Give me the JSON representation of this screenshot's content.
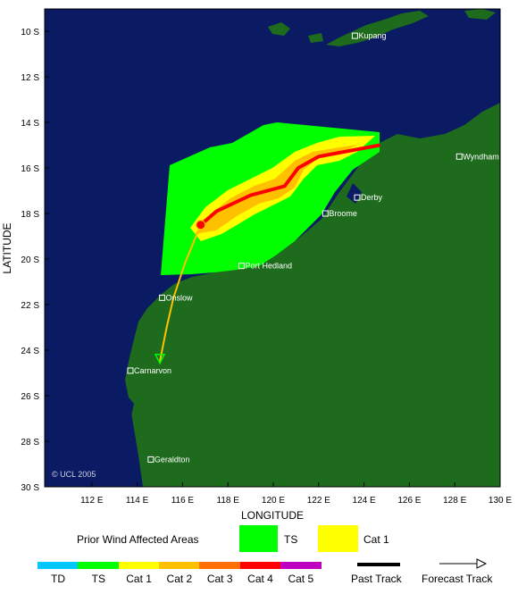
{
  "map": {
    "xlabel": "LONGITUDE",
    "ylabel": "LATITUDE",
    "copyright": "© UCL 2005",
    "lat_ticks": [
      "10 S",
      "12 S",
      "14 S",
      "16 S",
      "18 S",
      "20 S",
      "22 S",
      "24 S",
      "26 S",
      "28 S",
      "30 S"
    ],
    "lon_ticks": [
      "112 E",
      "114 E",
      "116 E",
      "118 E",
      "120 E",
      "122 E",
      "124 E",
      "126 E",
      "128 E",
      "130 E"
    ],
    "colors": {
      "ocean": "#0a1a63",
      "land": "#1e6b1e",
      "ts": "#00ff00",
      "cat1": "#ffff00",
      "cat2": "#ffc000",
      "cat4": "#ff0000"
    },
    "places": [
      {
        "name": "Kupang",
        "lon": 123.6,
        "lat": 10.2
      },
      {
        "name": "Wyndham",
        "lon": 128.2,
        "lat": 15.5
      },
      {
        "name": "Derby",
        "lon": 123.7,
        "lat": 17.3
      },
      {
        "name": "Broome",
        "lon": 122.3,
        "lat": 18.0
      },
      {
        "name": "Port Hedland",
        "lon": 118.6,
        "lat": 20.3
      },
      {
        "name": "Onslow",
        "lon": 115.1,
        "lat": 21.7
      },
      {
        "name": "Carnarvon",
        "lon": 113.7,
        "lat": 24.9
      },
      {
        "name": "Geraldton",
        "lon": 114.6,
        "lat": 28.8
      }
    ],
    "track": [
      {
        "lon": 124.7,
        "lat": 15.0
      },
      {
        "lon": 122.0,
        "lat": 15.5
      },
      {
        "lon": 121.1,
        "lat": 16.0
      },
      {
        "lon": 120.5,
        "lat": 16.8
      },
      {
        "lon": 119.0,
        "lat": 17.2
      },
      {
        "lon": 117.5,
        "lat": 17.9
      },
      {
        "lon": 116.8,
        "lat": 18.5
      },
      {
        "lon": 116.1,
        "lat": 20.2
      },
      {
        "lon": 115.6,
        "lat": 21.7
      },
      {
        "lon": 115.3,
        "lat": 23.0
      },
      {
        "lon": 115.0,
        "lat": 24.5
      }
    ]
  },
  "legend": {
    "prior_label": "Prior Wind Affected Areas",
    "ts_label": "TS",
    "cat1_label": "Cat 1",
    "categories": [
      {
        "label": "TD",
        "color": "#00c8ff"
      },
      {
        "label": "TS",
        "color": "#00ff00"
      },
      {
        "label": "Cat 1",
        "color": "#ffff00"
      },
      {
        "label": "Cat 2",
        "color": "#ffc000"
      },
      {
        "label": "Cat 3",
        "color": "#ff7000"
      },
      {
        "label": "Cat 4",
        "color": "#ff0000"
      },
      {
        "label": "Cat 5",
        "color": "#c000c0"
      }
    ],
    "past_track": "Past Track",
    "forecast_track": "Forecast Track"
  }
}
